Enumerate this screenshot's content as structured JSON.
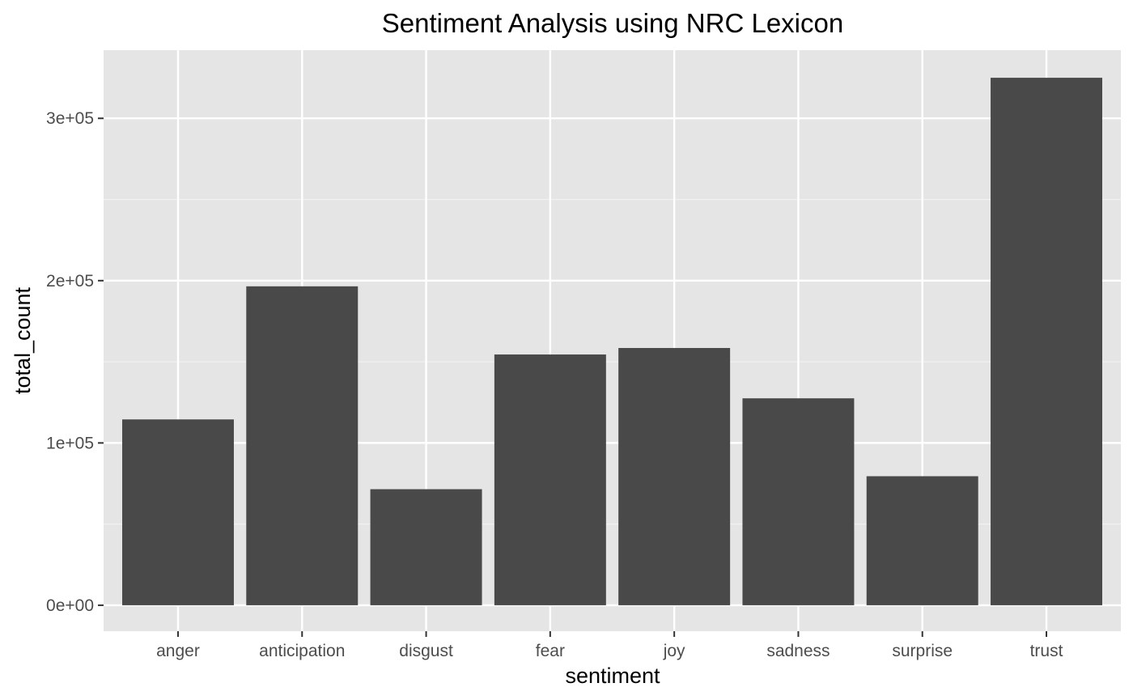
{
  "chart_data": {
    "type": "bar",
    "title": "Sentiment Analysis using NRC Lexicon",
    "xlabel": "sentiment",
    "ylabel": "total_count",
    "categories": [
      "anger",
      "anticipation",
      "disgust",
      "fear",
      "joy",
      "sadness",
      "surprise",
      "trust"
    ],
    "values": [
      114500,
      196500,
      71500,
      154500,
      158500,
      127500,
      79500,
      325000
    ],
    "ylim": [
      -16000,
      342000
    ],
    "yticks": [
      0,
      100000,
      200000,
      300000
    ],
    "ytick_labels": [
      "0e+00",
      "1e+05",
      "2e+05",
      "3e+05"
    ],
    "grid": true,
    "legend": "none",
    "colors": {
      "bar": "#494949",
      "panel": "#e5e5e5",
      "grid_major": "#ffffff",
      "grid_minor": "#f2f2f2",
      "tick": "#333333"
    }
  }
}
